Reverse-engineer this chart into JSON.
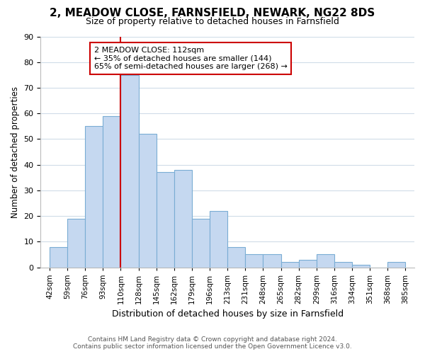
{
  "title": "2, MEADOW CLOSE, FARNSFIELD, NEWARK, NG22 8DS",
  "subtitle": "Size of property relative to detached houses in Farnsfield",
  "xlabel": "Distribution of detached houses by size in Farnsfield",
  "ylabel": "Number of detached properties",
  "bin_labels": [
    "42sqm",
    "59sqm",
    "76sqm",
    "93sqm",
    "110sqm",
    "128sqm",
    "145sqm",
    "162sqm",
    "179sqm",
    "196sqm",
    "213sqm",
    "231sqm",
    "248sqm",
    "265sqm",
    "282sqm",
    "299sqm",
    "316sqm",
    "334sqm",
    "351sqm",
    "368sqm",
    "385sqm"
  ],
  "bar_heights": [
    8,
    19,
    55,
    59,
    75,
    52,
    37,
    38,
    19,
    22,
    8,
    5,
    5,
    2,
    3,
    5,
    2,
    1,
    0,
    2
  ],
  "bar_color": "#c5d8f0",
  "bar_edge_color": "#7aadd4",
  "vline_x_index": 4,
  "vline_color": "#cc0000",
  "ylim": [
    0,
    90
  ],
  "yticks": [
    0,
    10,
    20,
    30,
    40,
    50,
    60,
    70,
    80,
    90
  ],
  "annotation_title": "2 MEADOW CLOSE: 112sqm",
  "annotation_line1": "← 35% of detached houses are smaller (144)",
  "annotation_line2": "65% of semi-detached houses are larger (268) →",
  "annotation_box_color": "#ffffff",
  "annotation_box_edge_color": "#cc0000",
  "footer_line1": "Contains HM Land Registry data © Crown copyright and database right 2024.",
  "footer_line2": "Contains public sector information licensed under the Open Government Licence v3.0.",
  "background_color": "#ffffff",
  "grid_color": "#d0dce8"
}
